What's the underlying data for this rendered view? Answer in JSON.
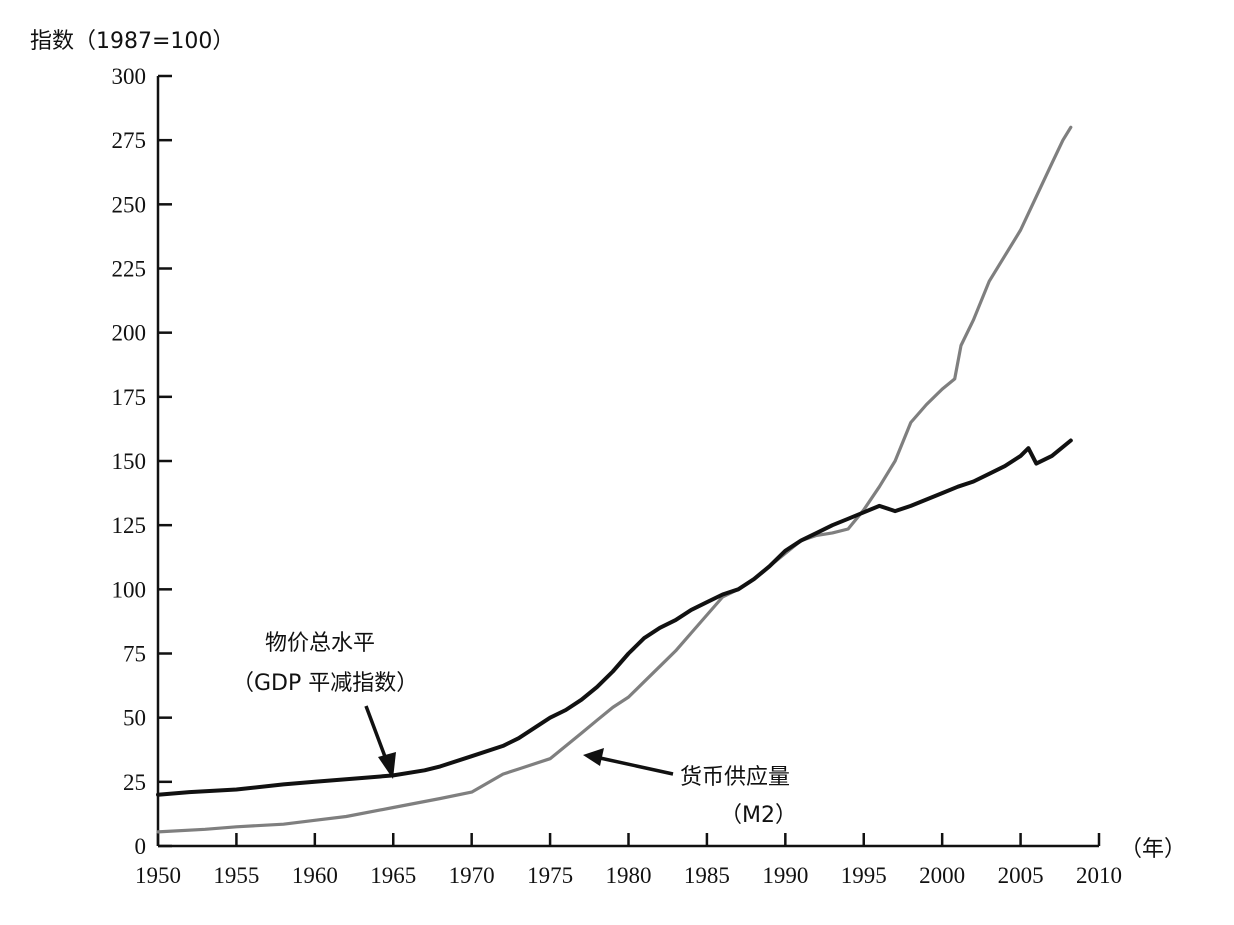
{
  "chart_data": {
    "type": "line",
    "ylabel": "指数（1987=100）",
    "xlabel": "（年）",
    "xlim": [
      1950,
      2010
    ],
    "ylim": [
      0,
      300
    ],
    "xticks": [
      1950,
      1955,
      1960,
      1965,
      1970,
      1975,
      1980,
      1985,
      1990,
      1995,
      2000,
      2005,
      2010
    ],
    "yticks": [
      0,
      25,
      50,
      75,
      100,
      125,
      150,
      175,
      200,
      225,
      250,
      275,
      300
    ],
    "grid": false,
    "colors": {
      "gdp": "#111111",
      "m2": "#7f7f7f"
    },
    "series": [
      {
        "key": "gdp",
        "name": "物价总水平（GDP平减指数）",
        "label_lines": [
          "物价总水平",
          "（GDP 平减指数）"
        ],
        "x": [
          1950,
          1952,
          1955,
          1958,
          1960,
          1963,
          1965,
          1967,
          1968,
          1970,
          1972,
          1973,
          1974,
          1975,
          1976,
          1977,
          1978,
          1979,
          1980,
          1981,
          1982,
          1983,
          1984,
          1985,
          1986,
          1987,
          1988,
          1989,
          1990,
          1991,
          1992,
          1993,
          1994,
          1995,
          1996,
          1997,
          1998,
          1999,
          2000,
          2001,
          2002,
          2003,
          2004,
          2005,
          2005.5,
          2006,
          2007,
          2008.2
        ],
        "values": [
          20,
          21,
          22,
          24,
          25,
          26.5,
          27.5,
          29.5,
          31,
          35,
          39,
          42,
          46,
          50,
          53,
          57,
          62,
          68,
          75,
          81,
          85,
          88,
          92,
          95,
          98,
          100,
          104,
          109,
          115,
          119,
          122,
          125,
          127.5,
          130,
          132.5,
          130.5,
          132.5,
          135,
          137.5,
          140,
          142,
          145,
          148,
          152,
          155,
          149,
          152,
          158
        ]
      },
      {
        "key": "m2",
        "name": "货币供应量（M2）",
        "label_lines": [
          "货币供应量",
          "（M2）"
        ],
        "x": [
          1950,
          1953,
          1955,
          1958,
          1960,
          1962,
          1965,
          1968,
          1970,
          1972,
          1973,
          1975,
          1977,
          1978,
          1979,
          1980,
          1981,
          1982,
          1983,
          1984,
          1985,
          1986,
          1987,
          1988,
          1989,
          1990,
          1991,
          1992,
          1993,
          1994,
          1995,
          1996,
          1997,
          1998,
          1999,
          2000,
          2000.8,
          2001.2,
          2002,
          2003,
          2004,
          2005,
          2006,
          2007,
          2007.7,
          2008.2
        ],
        "values": [
          5.5,
          6.5,
          7.5,
          8.5,
          10,
          11.5,
          15,
          18.5,
          21,
          28,
          30,
          34,
          44,
          49,
          54,
          58,
          64,
          70,
          76,
          83,
          90,
          97,
          100,
          104,
          109,
          114,
          119,
          121,
          122,
          123.5,
          131,
          140,
          150,
          165,
          172,
          178,
          182,
          195,
          205,
          220,
          230,
          240,
          253,
          266,
          275,
          280
        ]
      }
    ]
  }
}
